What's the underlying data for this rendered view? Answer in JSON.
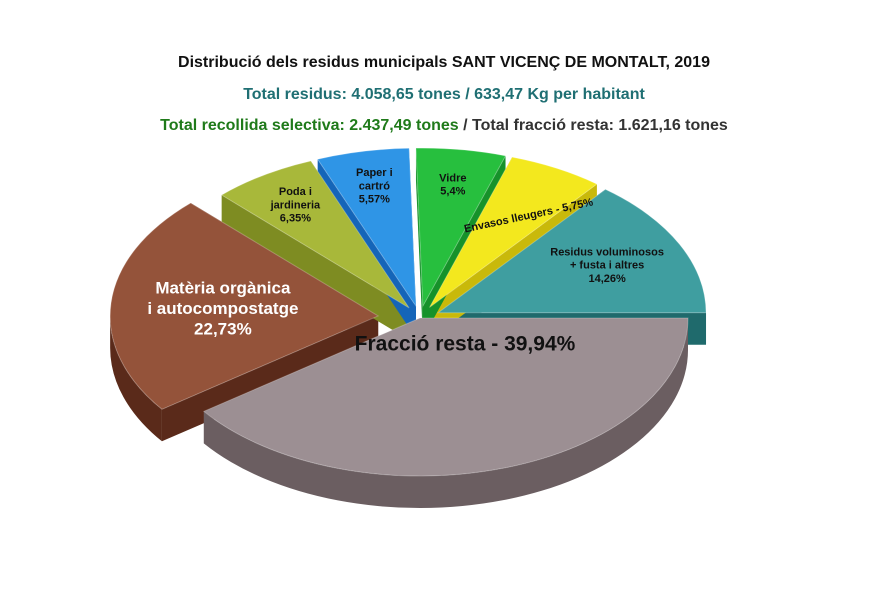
{
  "header": {
    "title": "Distribució dels residus municipals SANT VICENÇ DE MONTALT, 2019",
    "total_line": "Total residus: 4.058,65 tones / 633,47 Kg per habitant",
    "selective_part": "Total recollida selectiva: 2.437,49 tones",
    "separator": " / ",
    "rest_part": "Total fracció resta: 1.621,16 tones"
  },
  "chart_data": {
    "type": "pie",
    "title": "Distribució dels residus municipals SANT VICENÇ DE MONTALT, 2019",
    "series": [
      {
        "name": "Fracció resta",
        "value": 39.94,
        "label_lines": [
          "Fracció resta - 39,94%"
        ],
        "color": "#9c8f93",
        "side": "#6b5e61",
        "exploded": false,
        "label_color": "#111111"
      },
      {
        "name": "Matèria orgànica i autocompostatge",
        "value": 22.73,
        "label_lines": [
          "Matèria orgànica",
          "i autocompostatge",
          "22,73%"
        ],
        "color": "#94533a",
        "side": "#5a2a1a",
        "exploded": true,
        "label_color": "#ffffff"
      },
      {
        "name": "Poda i jardineria",
        "value": 6.35,
        "label_lines": [
          "Poda i",
          "jardineria",
          "6,35%"
        ],
        "color": "#a8b83a",
        "side": "#7e8c22",
        "exploded": true,
        "label_color": "#111111"
      },
      {
        "name": "Paper i cartró",
        "value": 5.57,
        "label_lines": [
          "Paper i",
          "cartró",
          "5,57%"
        ],
        "color": "#2f95e6",
        "side": "#1565b8",
        "exploded": true,
        "label_color": "#111111"
      },
      {
        "name": "Vidre",
        "value": 5.4,
        "label_lines": [
          "Vidre",
          "5,4%"
        ],
        "color": "#27bf3e",
        "side": "#16922a",
        "exploded": true,
        "label_color": "#111111"
      },
      {
        "name": "Envasos lleugers",
        "value": 5.75,
        "label_lines": [
          "Envasos lleugers - 5,75%"
        ],
        "color": "#f3e81e",
        "side": "#c9b90a",
        "exploded": true,
        "label_color": "#111111"
      },
      {
        "name": "Residus voluminosos + fusta i altres",
        "value": 14.26,
        "label_lines": [
          "Residus voluminosos",
          "+ fusta i altres",
          "14,26%"
        ],
        "color": "#3f9ea0",
        "side": "#1f6a6c",
        "exploded": true,
        "label_color": "#111111"
      }
    ]
  }
}
